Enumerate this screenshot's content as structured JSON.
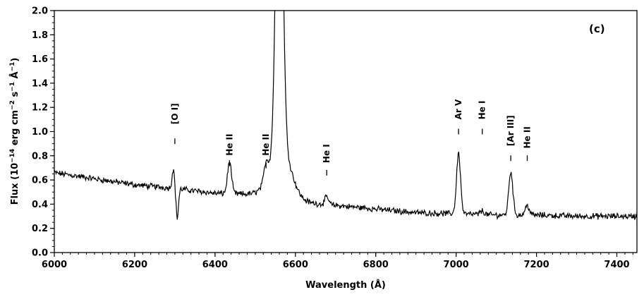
{
  "chart_data": {
    "type": "line",
    "panel_label": "(c)",
    "xlabel": "Wavelength (Å)",
    "ylabel_parts": {
      "pre": "Flux (10",
      "exp1": "−14",
      "mid1": " erg cm",
      "exp2": "−2",
      "mid2": " s",
      "exp3": "−1",
      "mid3": " Å",
      "exp4": "−1",
      "post": ")"
    },
    "xlim": [
      6000,
      7450
    ],
    "ylim": [
      0.0,
      2.0
    ],
    "x_ticks": [
      "6000",
      "6200",
      "6400",
      "6600",
      "6800",
      "7000",
      "7200",
      "7400"
    ],
    "y_ticks": [
      "0.0",
      "0.2",
      "0.4",
      "0.6",
      "0.8",
      "1.0",
      "1.2",
      "1.4",
      "1.6",
      "1.8",
      "2.0"
    ],
    "grid": false,
    "series": [
      {
        "continuum": [
          [
            6000,
            0.66
          ],
          [
            6100,
            0.61
          ],
          [
            6200,
            0.56
          ],
          [
            6300,
            0.53
          ],
          [
            6400,
            0.49
          ],
          [
            6500,
            0.48
          ],
          [
            6600,
            0.42
          ],
          [
            6700,
            0.39
          ],
          [
            6800,
            0.36
          ],
          [
            6900,
            0.33
          ],
          [
            7000,
            0.32
          ],
          [
            7100,
            0.31
          ],
          [
            7200,
            0.31
          ],
          [
            7300,
            0.3
          ],
          [
            7450,
            0.3
          ]
        ],
        "features": [
          {
            "center": 6296,
            "amplitude": 0.16,
            "width": 3
          },
          {
            "center": 6306,
            "amplitude": -0.24,
            "width": 3
          },
          {
            "center": 6436,
            "amplitude": 0.26,
            "width": 5
          },
          {
            "center": 6527,
            "amplitude": 0.14,
            "width": 5
          },
          {
            "center": 6560,
            "amplitude": 3.2,
            "width": 8
          },
          {
            "center": 6563,
            "amplitude": 0.45,
            "width": 25
          },
          {
            "center": 6678,
            "amplitude": 0.06,
            "width": 5
          },
          {
            "center": 7006,
            "amplitude": 0.5,
            "width": 5
          },
          {
            "center": 7065,
            "amplitude": 0.03,
            "width": 5
          },
          {
            "center": 7136,
            "amplitude": 0.36,
            "width": 5
          },
          {
            "center": 7177,
            "amplitude": 0.08,
            "width": 5
          }
        ],
        "noise_amplitude": 0.02
      }
    ],
    "line_labels": [
      {
        "label": "[O I]",
        "x": 6300,
        "y_tick": 0.92,
        "y_text_bottom": 1.06
      },
      {
        "label": "He II",
        "x": 6436,
        "y_tick": 0.74,
        "y_text_bottom": 0.8
      },
      {
        "label": "He II",
        "x": 6527,
        "y_tick": 0.72,
        "y_text_bottom": 0.8
      },
      {
        "label": "He I",
        "x": 6678,
        "y_tick": 0.66,
        "y_text_bottom": 0.74
      },
      {
        "label": "Ar V",
        "x": 7006,
        "y_tick": 1.0,
        "y_text_bottom": 1.1
      },
      {
        "label": "He I",
        "x": 7065,
        "y_tick": 1.0,
        "y_text_bottom": 1.1
      },
      {
        "label": "[Ar III]",
        "x": 7136,
        "y_tick": 0.78,
        "y_text_bottom": 0.88
      },
      {
        "label": "He II",
        "x": 7177,
        "y_tick": 0.78,
        "y_text_bottom": 0.86
      }
    ]
  }
}
